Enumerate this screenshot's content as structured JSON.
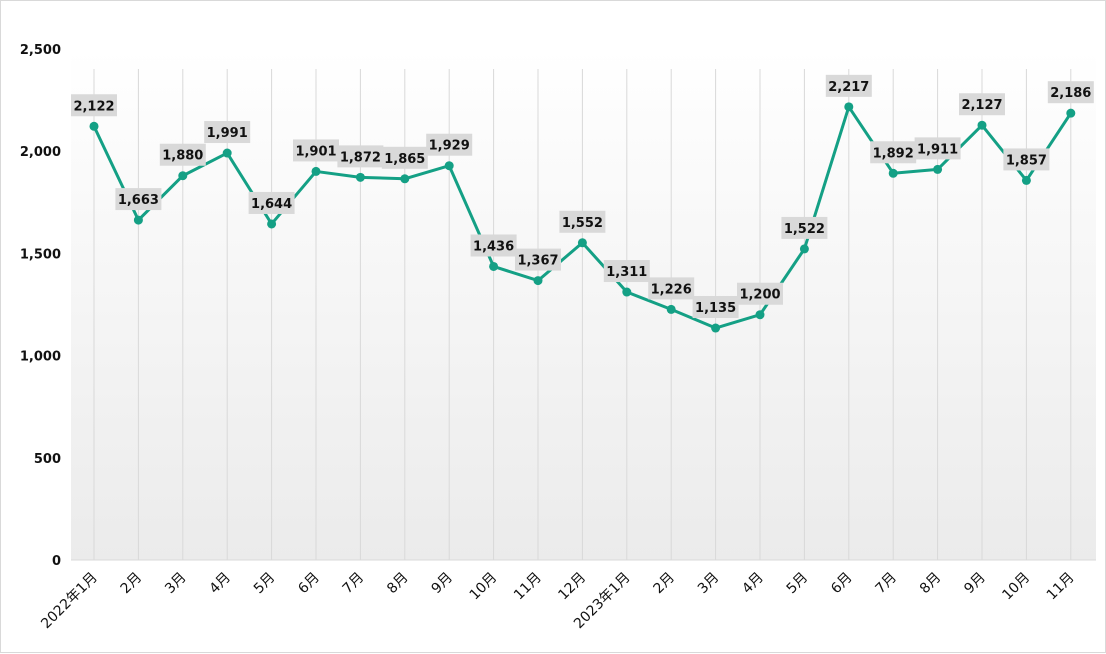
{
  "chart_data": {
    "type": "line",
    "title": "",
    "xlabel": "",
    "ylabel": "",
    "ylim": [
      0,
      2500
    ],
    "yticks": [
      0,
      500,
      1000,
      1500,
      2000,
      2500
    ],
    "ytick_labels": [
      "0",
      "500",
      "1,000",
      "1,500",
      "2,000",
      "2,500"
    ],
    "grid": "vertical",
    "legend": "none",
    "colors": {
      "line": "#14a085",
      "label_bg": "#d9d9d9",
      "grid": "#d9d9d9"
    },
    "categories": [
      "2022年1月",
      "2月",
      "3月",
      "4月",
      "5月",
      "6月",
      "7月",
      "8月",
      "9月",
      "10月",
      "11月",
      "12月",
      "2023年1月",
      "2月",
      "3月",
      "4月",
      "5月",
      "6月",
      "7月",
      "8月",
      "9月",
      "10月",
      "11月"
    ],
    "series": [
      {
        "values": [
          2122,
          1663,
          1880,
          1991,
          1644,
          1901,
          1872,
          1865,
          1929,
          1436,
          1367,
          1552,
          1311,
          1226,
          1135,
          1200,
          1522,
          2217,
          1892,
          1911,
          2127,
          1857,
          2186
        ],
        "data_labels": [
          "2,122",
          "1,663",
          "1,880",
          "1,991",
          "1,644",
          "1,901",
          "1,872",
          "1,865",
          "1,929",
          "1,436",
          "1,367",
          "1,552",
          "1,311",
          "1,226",
          "1,135",
          "1,200",
          "1,522",
          "2,217",
          "1,892",
          "1,911",
          "2,127",
          "1,857",
          "2,186"
        ]
      }
    ]
  }
}
